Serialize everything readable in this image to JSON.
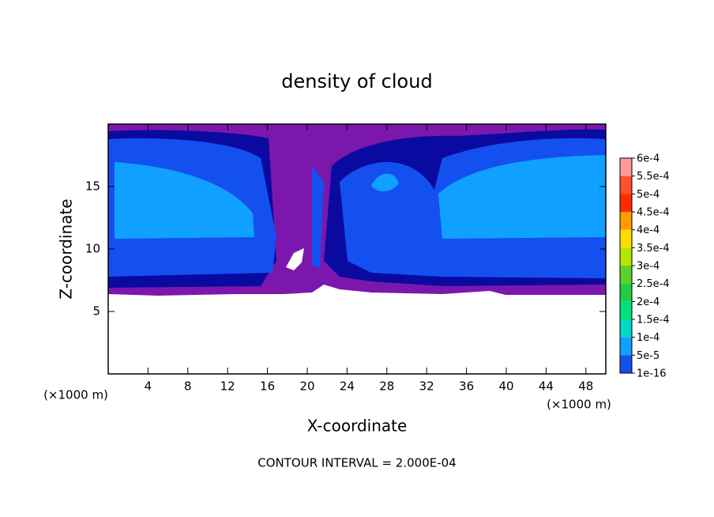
{
  "chart_data": {
    "type": "contour",
    "title": "density of cloud",
    "x_label": "X-coordinate",
    "y_label": "Z-coordinate",
    "x_unit": "(×1000 m)",
    "y_unit": "(×1000 m)",
    "footer": "CONTOUR INTERVAL = 2.000E-04",
    "xlim": [
      0,
      50
    ],
    "ylim": [
      0,
      20
    ],
    "xticks": [
      4,
      8,
      12,
      16,
      20,
      24,
      28,
      32,
      36,
      40,
      44,
      48
    ],
    "yticks": [
      5,
      10,
      15
    ],
    "colorbar": {
      "levels": [
        {
          "value": 0.0006,
          "label": "6e-4"
        },
        {
          "value": 0.00055,
          "label": "5.5e-4"
        },
        {
          "value": 0.0005,
          "label": "5e-4"
        },
        {
          "value": 0.00045,
          "label": "4.5e-4"
        },
        {
          "value": 0.0004,
          "label": "4e-4"
        },
        {
          "value": 0.00035,
          "label": "3.5e-4"
        },
        {
          "value": 0.0003,
          "label": "3e-4"
        },
        {
          "value": 0.00025,
          "label": "2.5e-4"
        },
        {
          "value": 0.0002,
          "label": "2e-4"
        },
        {
          "value": 0.00015,
          "label": "1.5e-4"
        },
        {
          "value": 0.0001,
          "label": "1e-4"
        },
        {
          "value": 5e-05,
          "label": "5e-5"
        },
        {
          "value": 1e-16,
          "label": "1e-16"
        }
      ],
      "colors": [
        "#ff9a9a",
        "#ff5030",
        "#ff2a00",
        "#ff9a00",
        "#ffdd00",
        "#b4e600",
        "#5ad22a",
        "#22cc44",
        "#00e07a",
        "#00d8c8",
        "#10a0ff",
        "#1450f0",
        "#0a0aa0",
        "#7b17ad"
      ]
    }
  }
}
